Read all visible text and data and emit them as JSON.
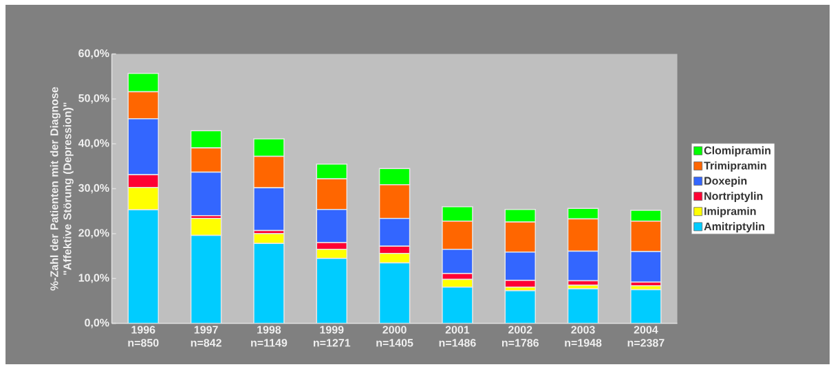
{
  "chart_data": {
    "type": "bar",
    "stacked": true,
    "ylabel": "%-Zahl der Patienten mit der Diagnose \"Affektive Störung (Depression)\"",
    "categories": [
      "1996 n=850",
      "1997 n=842",
      "1998 n=1149",
      "1999 n=1271",
      "2000 n=1405",
      "2001 n=1486",
      "2002 n=1786",
      "2003 n=1948",
      "2004 n=2387"
    ],
    "series": [
      {
        "name": "Amitriptylin",
        "color": "#00ccff",
        "values": [
          25.3,
          19.6,
          17.8,
          14.5,
          13.5,
          8.1,
          7.3,
          7.7,
          7.5
        ]
      },
      {
        "name": "Imipramin",
        "color": "#ffff00",
        "values": [
          5.0,
          3.8,
          2.2,
          2.0,
          2.1,
          1.7,
          0.8,
          0.8,
          0.9
        ]
      },
      {
        "name": "Nortriptylin",
        "color": "#ff0033",
        "values": [
          2.8,
          0.6,
          0.7,
          1.5,
          1.6,
          1.3,
          1.5,
          1.0,
          0.8
        ]
      },
      {
        "name": "Doxepin",
        "color": "#3366ff",
        "values": [
          12.5,
          9.7,
          9.5,
          7.4,
          6.2,
          5.4,
          6.3,
          6.6,
          6.8
        ]
      },
      {
        "name": "Trimipramin",
        "color": "#ff6600",
        "values": [
          6.0,
          5.4,
          7.0,
          6.8,
          7.5,
          6.3,
          6.7,
          7.2,
          6.8
        ]
      },
      {
        "name": "Clomipramin",
        "color": "#00ff00",
        "values": [
          4.1,
          3.8,
          3.9,
          3.3,
          3.6,
          3.2,
          2.8,
          2.3,
          2.4
        ]
      }
    ],
    "ylim": [
      0,
      60
    ],
    "yticks": [
      {
        "value": 0,
        "label": "0,0%"
      },
      {
        "value": 10,
        "label": "10,0%"
      },
      {
        "value": 20,
        "label": "20,0%"
      },
      {
        "value": 30,
        "label": "30,0%"
      },
      {
        "value": 40,
        "label": "40,0%"
      },
      {
        "value": 50,
        "label": "50,0%"
      },
      {
        "value": 60,
        "label": "60,0%"
      }
    ],
    "legend": "right"
  }
}
